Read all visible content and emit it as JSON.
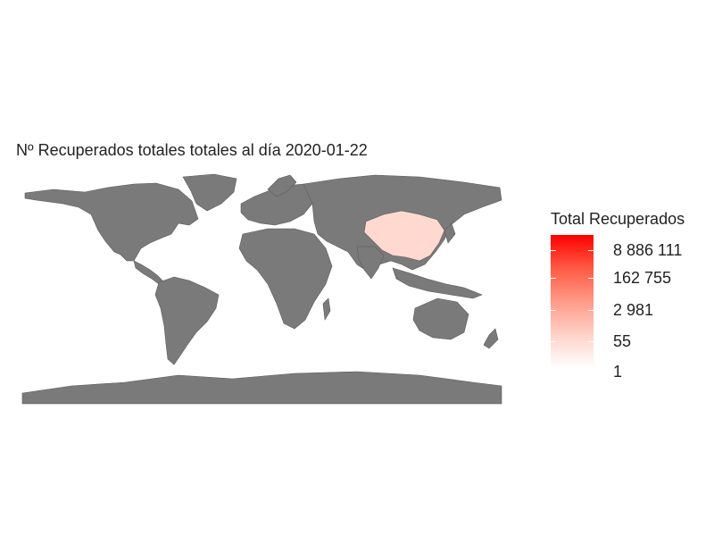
{
  "title": "Nº Recuperados totales totales al día 2020-01-22",
  "colors": {
    "land": "#7a7a7a",
    "border": "#5c5c5c",
    "highlight": "#ffd9d0",
    "scale_high": "#ff0000",
    "scale_low": "#ffffff"
  },
  "map": {
    "highlighted_countries": [
      {
        "name": "China",
        "value": 28
      }
    ]
  },
  "legend": {
    "title": "Total Recuperados",
    "labels": [
      "8 886 111",
      "162 755",
      "2 981",
      "55",
      "1"
    ]
  }
}
